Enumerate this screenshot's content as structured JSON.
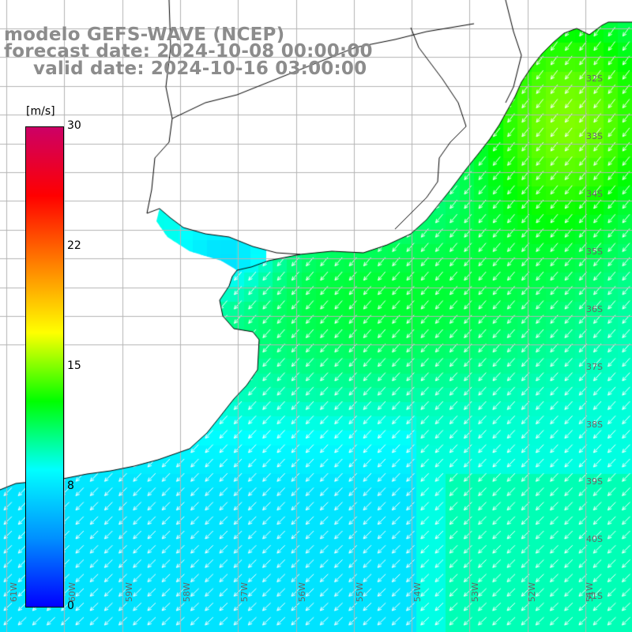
{
  "header": {
    "line1": "modelo GEFS-WAVE (NCEP)",
    "line2": "forecast date: 2024-10-08 00:00:00",
    "line3": "valid date: 2024-10-16 03:00:00"
  },
  "colorbar": {
    "unit": "[m/s]",
    "ticks": [
      "30",
      "22",
      "15",
      "8",
      "0"
    ],
    "tick_values": [
      30,
      22,
      15,
      8,
      0
    ],
    "range": [
      0,
      30
    ],
    "stops": [
      "#0000ff",
      "#0090ff",
      "#00ffff",
      "#00ff00",
      "#ffff00",
      "#ff8000",
      "#ff0000",
      "#cc0066"
    ]
  },
  "lat_labels": [
    "32S",
    "33S",
    "34S",
    "35S",
    "36S",
    "37S",
    "38S",
    "39S",
    "40S",
    "41S"
  ],
  "lon_labels": [
    "61W",
    "60W",
    "59W",
    "58W",
    "57W",
    "56W",
    "55W",
    "54W",
    "53W",
    "52W",
    "51W"
  ],
  "map_data": {
    "variable": "wind speed",
    "units": "m/s",
    "lon_range": [
      -61.2,
      -50.6
    ],
    "lat_range": [
      -31.2,
      -41.3
    ],
    "wind_direction": "from NE toward SW",
    "speed_regions": [
      {
        "area": "offshore north-east (32S-34S, 51W-52W)",
        "speed": 14
      },
      {
        "area": "central shelf (35S-37S)",
        "speed": 11
      },
      {
        "area": "Rio de la Plata estuary",
        "speed": 7
      },
      {
        "area": "south-west coastal (38S-41S, 57W-61W)",
        "speed": 7
      },
      {
        "area": "south-east (39S-41S, 51W-54W)",
        "speed": 9
      }
    ]
  },
  "colors": {
    "title": "#8c8c8c",
    "grid": "#b4b4b4",
    "coast": "#000000",
    "arrow": "#ffffff",
    "land": "#ffffff"
  }
}
